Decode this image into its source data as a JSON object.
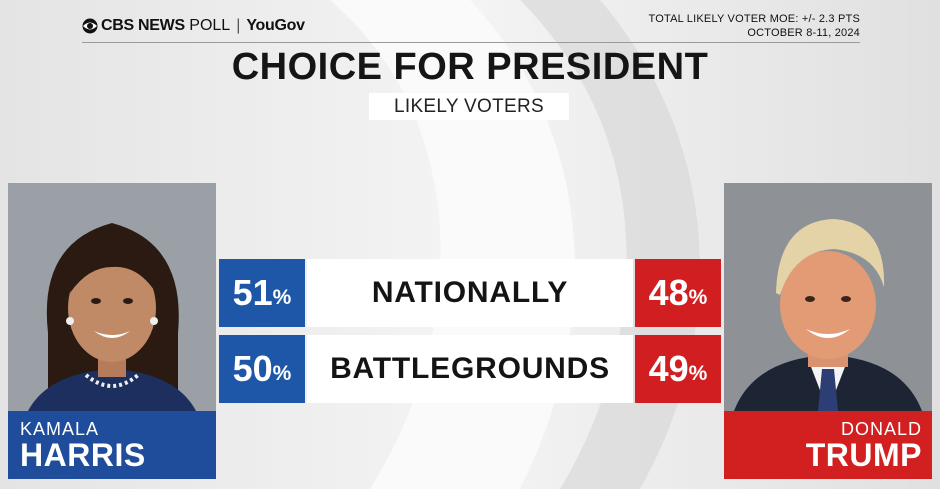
{
  "header": {
    "logo_network": "CBS NEWS",
    "logo_poll": "POLL",
    "logo_partner": "YouGov",
    "moe_line": "TOTAL LIKELY VOTER MOE: +/- 2.3 PTS",
    "date_line": "OCTOBER 8-11, 2024"
  },
  "chart_data": {
    "type": "table",
    "title": "CHOICE FOR PRESIDENT",
    "subtitle": "LIKELY VOTERS",
    "unit": "%",
    "categories": [
      "NATIONALLY",
      "BATTLEGROUNDS"
    ],
    "series": [
      {
        "name": "KAMALA HARRIS",
        "values": [
          51,
          50
        ],
        "color": "#1f57a8"
      },
      {
        "name": "DONALD TRUMP",
        "values": [
          48,
          49
        ],
        "color": "#d11f21"
      }
    ]
  },
  "candidates": {
    "left": {
      "first": "KAMALA",
      "last": "HARRIS",
      "color": "#1f4d9c"
    },
    "right": {
      "first": "DONALD",
      "last": "TRUMP",
      "color": "#d21f1f"
    }
  }
}
